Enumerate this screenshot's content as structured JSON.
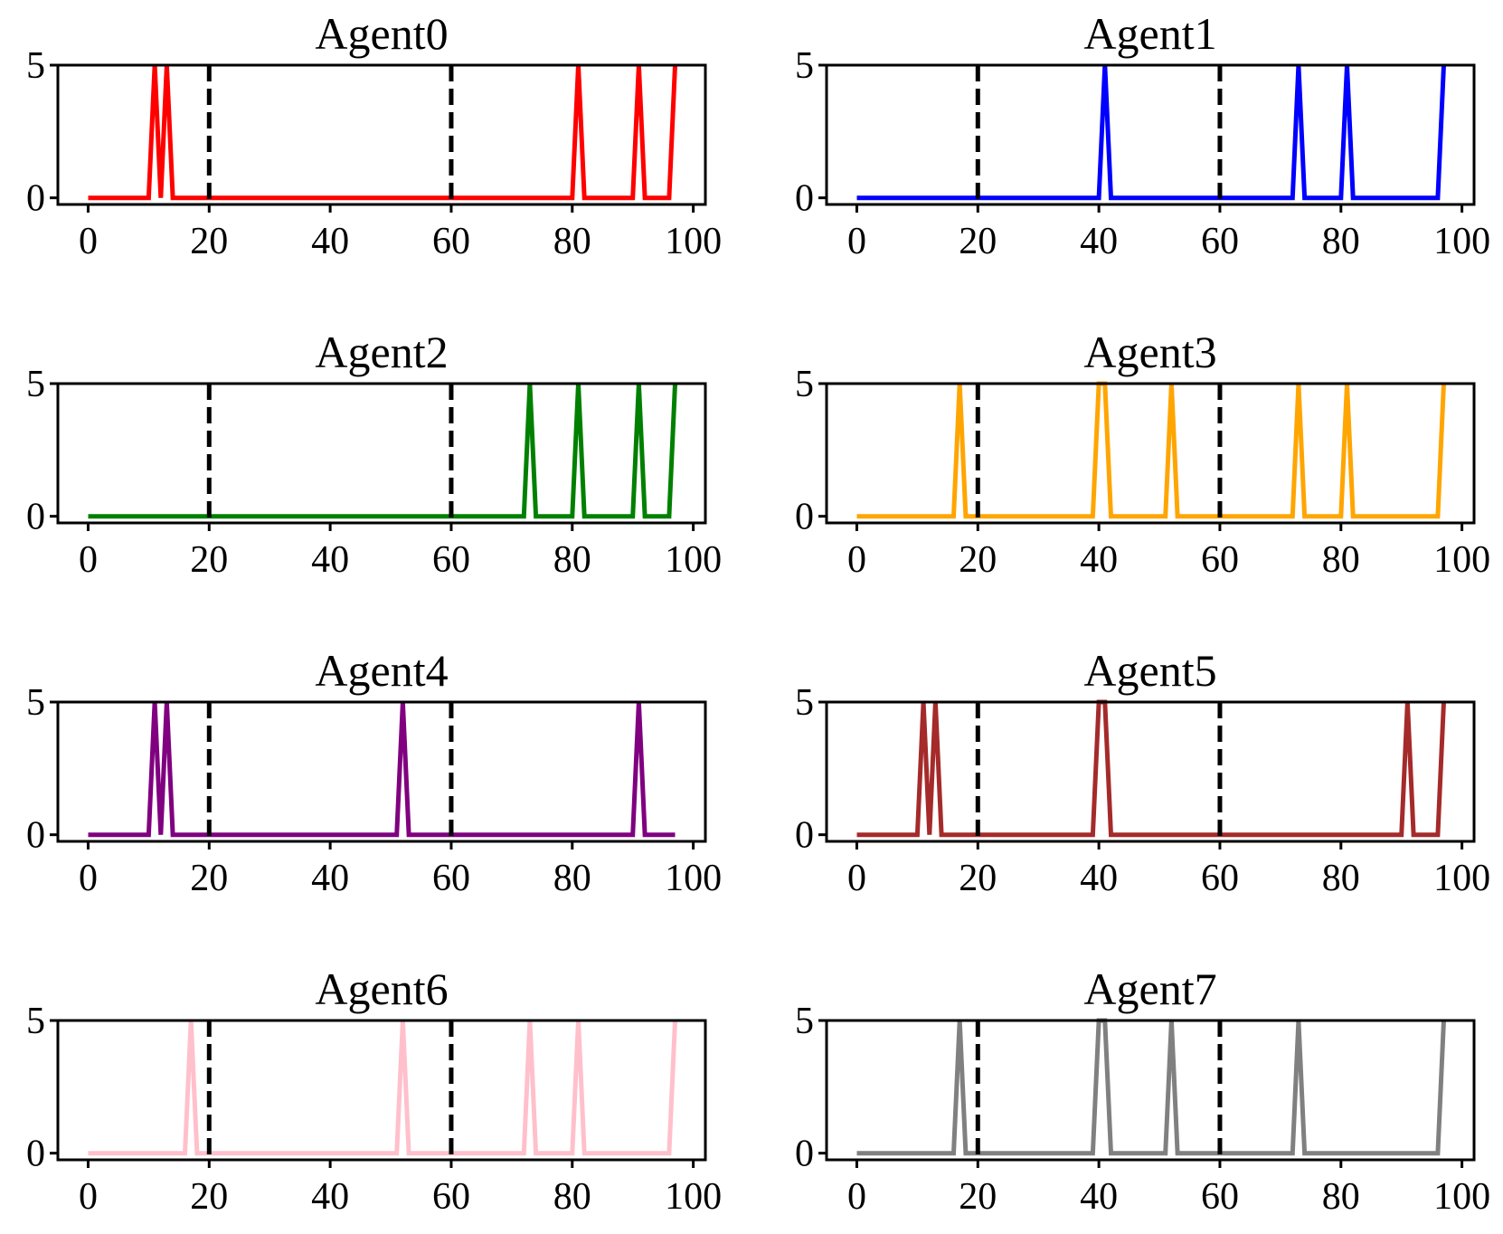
{
  "chart_data": [
    {
      "type": "line",
      "title": "Agent0",
      "color": "#ff0000",
      "xlim": [
        -5,
        102
      ],
      "ylim": [
        -0.25,
        5.0
      ],
      "xticks": [
        0,
        20,
        40,
        60,
        80,
        100
      ],
      "xtick_labels": [
        "0",
        "20",
        "40",
        "60",
        "80",
        "100"
      ],
      "yticks": [
        0,
        5
      ],
      "ytick_labels": [
        "0",
        "5"
      ],
      "vlines": [
        20,
        60
      ],
      "spikes": [
        11,
        13,
        81,
        91
      ],
      "x_end": 97,
      "end_high": true
    },
    {
      "type": "line",
      "title": "Agent1",
      "color": "#0000ff",
      "xlim": [
        -5,
        102
      ],
      "ylim": [
        -0.25,
        5.0
      ],
      "xticks": [
        0,
        20,
        40,
        60,
        80,
        100
      ],
      "xtick_labels": [
        "0",
        "20",
        "40",
        "60",
        "80",
        "100"
      ],
      "yticks": [
        0,
        5
      ],
      "ytick_labels": [
        "0",
        "5"
      ],
      "vlines": [
        20,
        60
      ],
      "spikes": [
        41,
        73,
        81
      ],
      "x_end": 97,
      "end_high": true
    },
    {
      "type": "line",
      "title": "Agent2",
      "color": "#008000",
      "xlim": [
        -5,
        102
      ],
      "ylim": [
        -0.25,
        5.0
      ],
      "xticks": [
        0,
        20,
        40,
        60,
        80,
        100
      ],
      "xtick_labels": [
        "0",
        "20",
        "40",
        "60",
        "80",
        "100"
      ],
      "yticks": [
        0,
        5
      ],
      "ytick_labels": [
        "0",
        "5"
      ],
      "vlines": [
        20,
        60
      ],
      "spikes": [
        73,
        81,
        91
      ],
      "x_end": 97,
      "end_high": true
    },
    {
      "type": "line",
      "title": "Agent3",
      "color": "#ffa500",
      "xlim": [
        -5,
        102
      ],
      "ylim": [
        -0.25,
        5.0
      ],
      "xticks": [
        0,
        20,
        40,
        60,
        80,
        100
      ],
      "xtick_labels": [
        "0",
        "20",
        "40",
        "60",
        "80",
        "100"
      ],
      "yticks": [
        0,
        5
      ],
      "ytick_labels": [
        "0",
        "5"
      ],
      "vlines": [
        20,
        60
      ],
      "spikes": [
        17,
        40,
        41,
        52,
        73,
        81
      ],
      "x_end": 97,
      "end_high": true
    },
    {
      "type": "line",
      "title": "Agent4",
      "color": "#800080",
      "xlim": [
        -5,
        102
      ],
      "ylim": [
        -0.25,
        5.0
      ],
      "xticks": [
        0,
        20,
        40,
        60,
        80,
        100
      ],
      "xtick_labels": [
        "0",
        "20",
        "40",
        "60",
        "80",
        "100"
      ],
      "yticks": [
        0,
        5
      ],
      "ytick_labels": [
        "0",
        "5"
      ],
      "vlines": [
        20,
        60
      ],
      "spikes": [
        11,
        13,
        52,
        91
      ],
      "x_end": 97,
      "end_high": false
    },
    {
      "type": "line",
      "title": "Agent5",
      "color": "#a52a2a",
      "xlim": [
        -5,
        102
      ],
      "ylim": [
        -0.25,
        5.0
      ],
      "xticks": [
        0,
        20,
        40,
        60,
        80,
        100
      ],
      "xtick_labels": [
        "0",
        "20",
        "40",
        "60",
        "80",
        "100"
      ],
      "yticks": [
        0,
        5
      ],
      "ytick_labels": [
        "0",
        "5"
      ],
      "vlines": [
        20,
        60
      ],
      "spikes": [
        11,
        13,
        40,
        41,
        91
      ],
      "x_end": 97,
      "end_high": true
    },
    {
      "type": "line",
      "title": "Agent6",
      "color": "#ffc0cb",
      "xlim": [
        -5,
        102
      ],
      "ylim": [
        -0.25,
        5.0
      ],
      "xticks": [
        0,
        20,
        40,
        60,
        80,
        100
      ],
      "xtick_labels": [
        "0",
        "20",
        "40",
        "60",
        "80",
        "100"
      ],
      "yticks": [
        0,
        5
      ],
      "ytick_labels": [
        "0",
        "5"
      ],
      "vlines": [
        20,
        60
      ],
      "spikes": [
        17,
        52,
        73,
        81
      ],
      "x_end": 97,
      "end_high": true
    },
    {
      "type": "line",
      "title": "Agent7",
      "color": "#808080",
      "xlim": [
        -5,
        102
      ],
      "ylim": [
        -0.25,
        5.0
      ],
      "xticks": [
        0,
        20,
        40,
        60,
        80,
        100
      ],
      "xtick_labels": [
        "0",
        "20",
        "40",
        "60",
        "80",
        "100"
      ],
      "yticks": [
        0,
        5
      ],
      "ytick_labels": [
        "0",
        "5"
      ],
      "vlines": [
        20,
        60
      ],
      "spikes": [
        17,
        40,
        41,
        52,
        73
      ],
      "x_end": 97,
      "end_high": true
    }
  ]
}
